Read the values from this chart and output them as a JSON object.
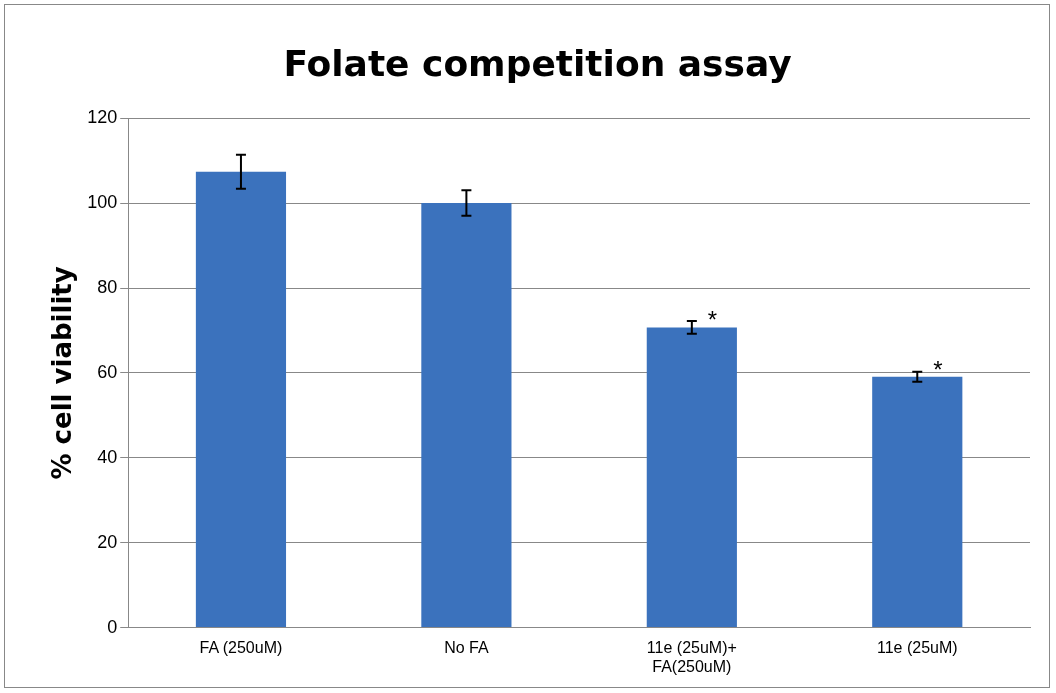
{
  "chart_data": {
    "type": "bar",
    "title": "Folate competition assay",
    "ylabel": "% cell viability",
    "categories": [
      "FA (250uM)",
      "No FA",
      "11e (25uM)+\nFA(250uM)",
      "11e (25uM)"
    ],
    "values": [
      107.4,
      100,
      70.7,
      59.1
    ],
    "errors": [
      4,
      3,
      1.5,
      1.2
    ],
    "color": "#3b72bd",
    "ylim": [
      0,
      120
    ],
    "yticks": [
      0,
      20,
      40,
      60,
      80,
      100,
      120
    ],
    "grid": "y",
    "annotations": [
      {
        "text": "*",
        "x": "11e (25uM)+\nFA(250uM)",
        "y": 72.2
      },
      {
        "text": "*",
        "x": "11e (25uM)",
        "y": 60.3
      }
    ]
  }
}
